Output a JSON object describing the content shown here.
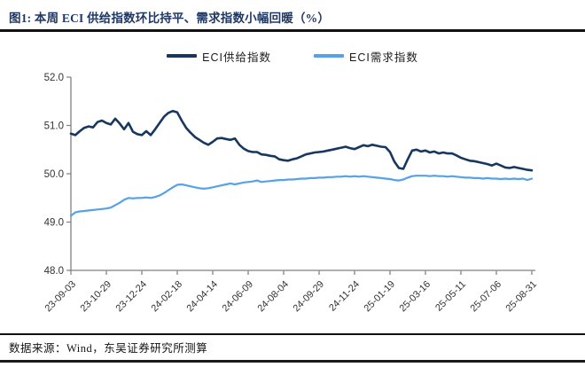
{
  "figure": {
    "title": "图1: 本周 ECI 供给指数环比持平、需求指数小幅回暖（%）",
    "source_note": "数据来源：Wind，东吴证券研究所测算"
  },
  "legend": [
    {
      "label": "ECI供给指数",
      "color": "#17375E"
    },
    {
      "label": "ECI需求指数",
      "color": "#55A2E8"
    }
  ],
  "chart_data": {
    "type": "line",
    "title": "本周 ECI 供给指数环比持平、需求指数小幅回暖（%）",
    "xlabel": "",
    "ylabel": "",
    "ylim": [
      48.0,
      52.0
    ],
    "y_ticks": [
      "52.0",
      "51.0",
      "50.0",
      "49.0",
      "48.0"
    ],
    "y_tick_values": [
      52.0,
      51.0,
      50.0,
      49.0,
      48.0
    ],
    "grid": false,
    "legend_position": "top-center",
    "x_tick_labels": [
      "23-09-03",
      "23-10-29",
      "23-12-24",
      "24-02-18",
      "24-04-14",
      "24-06-09",
      "24-08-04",
      "24-09-29",
      "24-11-24",
      "25-01-19",
      "25-03-16",
      "25-05-11",
      "25-07-06",
      "25-08-31"
    ],
    "x_tick_every_n_points": 8,
    "x_frequency": "weekly",
    "series": [
      {
        "name": "ECI供给指数",
        "color": "#17375E",
        "values": [
          50.83,
          50.8,
          50.88,
          50.95,
          50.98,
          50.96,
          51.07,
          51.1,
          51.05,
          51.02,
          51.14,
          51.04,
          50.92,
          51.05,
          50.87,
          50.82,
          50.8,
          50.88,
          50.8,
          50.92,
          51.05,
          51.18,
          51.26,
          51.3,
          51.27,
          51.1,
          50.95,
          50.85,
          50.76,
          50.7,
          50.64,
          50.6,
          50.66,
          50.73,
          50.74,
          50.72,
          50.7,
          50.73,
          50.6,
          50.52,
          50.47,
          50.45,
          50.45,
          50.4,
          50.39,
          50.37,
          50.36,
          50.3,
          50.28,
          50.27,
          50.3,
          50.32,
          50.36,
          50.4,
          50.42,
          50.44,
          50.45,
          50.46,
          50.48,
          50.5,
          50.52,
          50.54,
          50.56,
          50.53,
          50.51,
          50.55,
          50.59,
          50.57,
          50.6,
          50.58,
          50.56,
          50.55,
          50.45,
          50.25,
          50.12,
          50.1,
          50.3,
          50.48,
          50.5,
          50.46,
          50.48,
          50.44,
          50.46,
          50.42,
          50.44,
          50.42,
          50.42,
          50.38,
          50.33,
          50.3,
          50.27,
          50.26,
          50.24,
          50.22,
          50.2,
          50.17,
          50.21,
          50.17,
          50.13,
          50.12,
          50.14,
          50.12,
          50.1,
          50.08,
          50.07
        ]
      },
      {
        "name": "ECI需求指数",
        "color": "#55A2E8",
        "values": [
          49.13,
          49.2,
          49.22,
          49.23,
          49.24,
          49.25,
          49.26,
          49.27,
          49.28,
          49.3,
          49.35,
          49.4,
          49.46,
          49.5,
          49.49,
          49.5,
          49.5,
          49.51,
          49.5,
          49.52,
          49.55,
          49.6,
          49.66,
          49.72,
          49.77,
          49.78,
          49.76,
          49.74,
          49.72,
          49.7,
          49.69,
          49.7,
          49.72,
          49.74,
          49.76,
          49.78,
          49.8,
          49.78,
          49.8,
          49.82,
          49.83,
          49.84,
          49.86,
          49.83,
          49.84,
          49.85,
          49.86,
          49.87,
          49.87,
          49.88,
          49.88,
          49.89,
          49.9,
          49.9,
          49.91,
          49.91,
          49.92,
          49.92,
          49.93,
          49.93,
          49.94,
          49.94,
          49.95,
          49.94,
          49.95,
          49.94,
          49.95,
          49.94,
          49.93,
          49.92,
          49.91,
          49.9,
          49.89,
          49.87,
          49.86,
          49.88,
          49.92,
          49.95,
          49.96,
          49.96,
          49.96,
          49.95,
          49.96,
          49.95,
          49.95,
          49.94,
          49.95,
          49.94,
          49.93,
          49.92,
          49.92,
          49.91,
          49.91,
          49.9,
          49.91,
          49.9,
          49.9,
          49.89,
          49.9,
          49.89,
          49.9,
          49.89,
          49.9,
          49.87,
          49.9
        ]
      }
    ]
  },
  "style": {
    "axis_color": "#808080",
    "tick_label_color": "#333333",
    "title_color": "#1F3864"
  }
}
